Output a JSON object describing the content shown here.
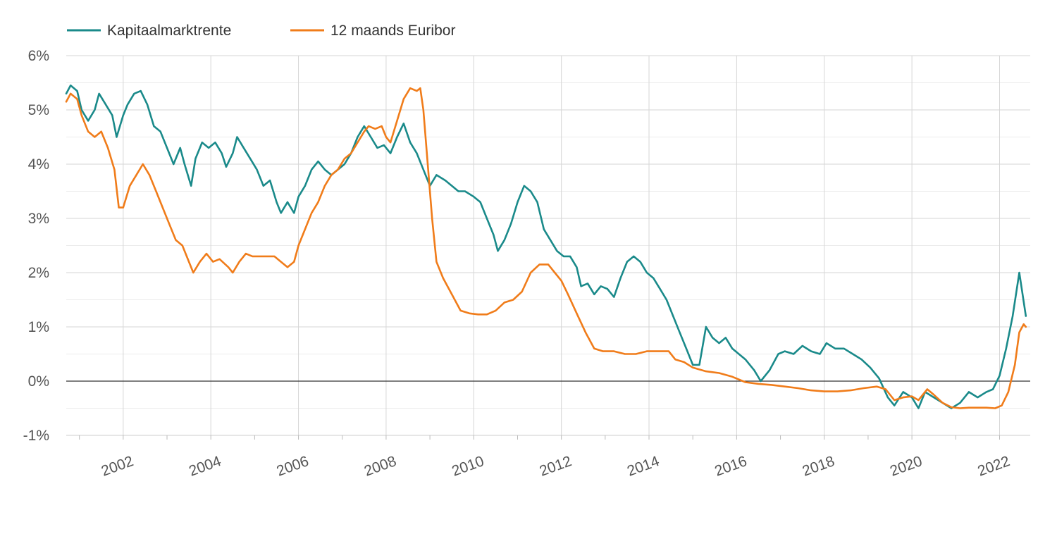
{
  "chart_data": {
    "type": "line",
    "title": "",
    "xlabel": "",
    "ylabel": "",
    "x_range": [
      2000.7,
      2022.7
    ],
    "ylim": [
      -1,
      6
    ],
    "grid": true,
    "legend_position": "top-left",
    "y_ticks": [
      -1,
      0,
      1,
      2,
      3,
      4,
      5,
      6
    ],
    "y_tick_labels": [
      "-1%",
      "0%",
      "1%",
      "2%",
      "3%",
      "4%",
      "5%",
      "6%"
    ],
    "x_ticks": [
      2002,
      2004,
      2006,
      2008,
      2010,
      2012,
      2014,
      2016,
      2018,
      2020,
      2022
    ],
    "x_tick_labels": [
      "2002",
      "2004",
      "2006",
      "2008",
      "2010",
      "2012",
      "2014",
      "2016",
      "2018",
      "2020",
      "2022"
    ],
    "series": [
      {
        "name": "Kapitaalmarktrente",
        "color": "#1a8a8a",
        "points": [
          [
            2000.7,
            5.3
          ],
          [
            2000.8,
            5.45
          ],
          [
            2000.95,
            5.35
          ],
          [
            2001.05,
            5.0
          ],
          [
            2001.2,
            4.8
          ],
          [
            2001.35,
            5.0
          ],
          [
            2001.45,
            5.3
          ],
          [
            2001.6,
            5.1
          ],
          [
            2001.75,
            4.9
          ],
          [
            2001.85,
            4.5
          ],
          [
            2002.0,
            4.9
          ],
          [
            2002.1,
            5.1
          ],
          [
            2002.25,
            5.3
          ],
          [
            2002.4,
            5.35
          ],
          [
            2002.55,
            5.1
          ],
          [
            2002.7,
            4.7
          ],
          [
            2002.85,
            4.6
          ],
          [
            2003.0,
            4.3
          ],
          [
            2003.15,
            4.0
          ],
          [
            2003.3,
            4.3
          ],
          [
            2003.4,
            4.0
          ],
          [
            2003.55,
            3.6
          ],
          [
            2003.65,
            4.1
          ],
          [
            2003.8,
            4.4
          ],
          [
            2003.95,
            4.3
          ],
          [
            2004.1,
            4.4
          ],
          [
            2004.25,
            4.2
          ],
          [
            2004.35,
            3.95
          ],
          [
            2004.5,
            4.2
          ],
          [
            2004.6,
            4.5
          ],
          [
            2004.75,
            4.3
          ],
          [
            2004.9,
            4.1
          ],
          [
            2005.05,
            3.9
          ],
          [
            2005.2,
            3.6
          ],
          [
            2005.35,
            3.7
          ],
          [
            2005.5,
            3.3
          ],
          [
            2005.6,
            3.1
          ],
          [
            2005.75,
            3.3
          ],
          [
            2005.9,
            3.1
          ],
          [
            2006.0,
            3.4
          ],
          [
            2006.15,
            3.6
          ],
          [
            2006.3,
            3.9
          ],
          [
            2006.45,
            4.05
          ],
          [
            2006.6,
            3.9
          ],
          [
            2006.75,
            3.8
          ],
          [
            2006.9,
            3.9
          ],
          [
            2007.05,
            4.0
          ],
          [
            2007.2,
            4.2
          ],
          [
            2007.35,
            4.5
          ],
          [
            2007.5,
            4.7
          ],
          [
            2007.65,
            4.5
          ],
          [
            2007.8,
            4.3
          ],
          [
            2007.95,
            4.35
          ],
          [
            2008.1,
            4.2
          ],
          [
            2008.25,
            4.5
          ],
          [
            2008.4,
            4.75
          ],
          [
            2008.55,
            4.4
          ],
          [
            2008.7,
            4.2
          ],
          [
            2008.85,
            3.9
          ],
          [
            2009.0,
            3.6
          ],
          [
            2009.15,
            3.8
          ],
          [
            2009.35,
            3.7
          ],
          [
            2009.5,
            3.6
          ],
          [
            2009.65,
            3.5
          ],
          [
            2009.8,
            3.5
          ],
          [
            2010.0,
            3.4
          ],
          [
            2010.15,
            3.3
          ],
          [
            2010.3,
            3.0
          ],
          [
            2010.45,
            2.7
          ],
          [
            2010.55,
            2.4
          ],
          [
            2010.7,
            2.6
          ],
          [
            2010.85,
            2.9
          ],
          [
            2011.0,
            3.3
          ],
          [
            2011.15,
            3.6
          ],
          [
            2011.3,
            3.5
          ],
          [
            2011.45,
            3.3
          ],
          [
            2011.6,
            2.8
          ],
          [
            2011.75,
            2.6
          ],
          [
            2011.9,
            2.4
          ],
          [
            2012.05,
            2.3
          ],
          [
            2012.2,
            2.3
          ],
          [
            2012.35,
            2.1
          ],
          [
            2012.45,
            1.75
          ],
          [
            2012.6,
            1.8
          ],
          [
            2012.75,
            1.6
          ],
          [
            2012.9,
            1.75
          ],
          [
            2013.05,
            1.7
          ],
          [
            2013.2,
            1.55
          ],
          [
            2013.35,
            1.9
          ],
          [
            2013.5,
            2.2
          ],
          [
            2013.65,
            2.3
          ],
          [
            2013.8,
            2.2
          ],
          [
            2013.95,
            2.0
          ],
          [
            2014.1,
            1.9
          ],
          [
            2014.25,
            1.7
          ],
          [
            2014.4,
            1.5
          ],
          [
            2014.55,
            1.2
          ],
          [
            2014.7,
            0.9
          ],
          [
            2014.85,
            0.6
          ],
          [
            2015.0,
            0.3
          ],
          [
            2015.15,
            0.3
          ],
          [
            2015.3,
            1.0
          ],
          [
            2015.45,
            0.8
          ],
          [
            2015.6,
            0.7
          ],
          [
            2015.75,
            0.8
          ],
          [
            2015.9,
            0.6
          ],
          [
            2016.05,
            0.5
          ],
          [
            2016.2,
            0.4
          ],
          [
            2016.4,
            0.2
          ],
          [
            2016.55,
            0.0
          ],
          [
            2016.75,
            0.2
          ],
          [
            2016.95,
            0.5
          ],
          [
            2017.1,
            0.55
          ],
          [
            2017.3,
            0.5
          ],
          [
            2017.5,
            0.65
          ],
          [
            2017.7,
            0.55
          ],
          [
            2017.9,
            0.5
          ],
          [
            2018.05,
            0.7
          ],
          [
            2018.25,
            0.6
          ],
          [
            2018.45,
            0.6
          ],
          [
            2018.65,
            0.5
          ],
          [
            2018.85,
            0.4
          ],
          [
            2019.05,
            0.25
          ],
          [
            2019.25,
            0.05
          ],
          [
            2019.45,
            -0.3
          ],
          [
            2019.6,
            -0.45
          ],
          [
            2019.8,
            -0.2
          ],
          [
            2020.0,
            -0.3
          ],
          [
            2020.15,
            -0.5
          ],
          [
            2020.3,
            -0.2
          ],
          [
            2020.5,
            -0.3
          ],
          [
            2020.7,
            -0.4
          ],
          [
            2020.9,
            -0.5
          ],
          [
            2021.1,
            -0.4
          ],
          [
            2021.3,
            -0.2
          ],
          [
            2021.5,
            -0.3
          ],
          [
            2021.7,
            -0.2
          ],
          [
            2021.85,
            -0.15
          ],
          [
            2022.0,
            0.1
          ],
          [
            2022.15,
            0.6
          ],
          [
            2022.3,
            1.2
          ],
          [
            2022.45,
            2.0
          ],
          [
            2022.6,
            1.2
          ]
        ]
      },
      {
        "name": "12 maands Euribor",
        "color": "#f07c1a",
        "points": [
          [
            2000.7,
            5.15
          ],
          [
            2000.8,
            5.3
          ],
          [
            2000.95,
            5.2
          ],
          [
            2001.05,
            4.9
          ],
          [
            2001.2,
            4.6
          ],
          [
            2001.35,
            4.5
          ],
          [
            2001.5,
            4.6
          ],
          [
            2001.65,
            4.3
          ],
          [
            2001.8,
            3.9
          ],
          [
            2001.9,
            3.2
          ],
          [
            2002.0,
            3.2
          ],
          [
            2002.15,
            3.6
          ],
          [
            2002.3,
            3.8
          ],
          [
            2002.45,
            4.0
          ],
          [
            2002.6,
            3.8
          ],
          [
            2002.75,
            3.5
          ],
          [
            2002.9,
            3.2
          ],
          [
            2003.05,
            2.9
          ],
          [
            2003.2,
            2.6
          ],
          [
            2003.35,
            2.5
          ],
          [
            2003.5,
            2.2
          ],
          [
            2003.6,
            2.0
          ],
          [
            2003.75,
            2.2
          ],
          [
            2003.9,
            2.35
          ],
          [
            2004.05,
            2.2
          ],
          [
            2004.2,
            2.25
          ],
          [
            2004.4,
            2.1
          ],
          [
            2004.5,
            2.0
          ],
          [
            2004.65,
            2.2
          ],
          [
            2004.8,
            2.35
          ],
          [
            2004.95,
            2.3
          ],
          [
            2005.2,
            2.3
          ],
          [
            2005.45,
            2.3
          ],
          [
            2005.6,
            2.2
          ],
          [
            2005.75,
            2.1
          ],
          [
            2005.9,
            2.2
          ],
          [
            2006.0,
            2.5
          ],
          [
            2006.15,
            2.8
          ],
          [
            2006.3,
            3.1
          ],
          [
            2006.45,
            3.3
          ],
          [
            2006.6,
            3.6
          ],
          [
            2006.75,
            3.8
          ],
          [
            2006.9,
            3.9
          ],
          [
            2007.05,
            4.1
          ],
          [
            2007.2,
            4.2
          ],
          [
            2007.35,
            4.4
          ],
          [
            2007.5,
            4.6
          ],
          [
            2007.6,
            4.7
          ],
          [
            2007.75,
            4.65
          ],
          [
            2007.9,
            4.7
          ],
          [
            2008.0,
            4.5
          ],
          [
            2008.1,
            4.4
          ],
          [
            2008.25,
            4.8
          ],
          [
            2008.4,
            5.2
          ],
          [
            2008.55,
            5.4
          ],
          [
            2008.7,
            5.35
          ],
          [
            2008.78,
            5.4
          ],
          [
            2008.85,
            5.0
          ],
          [
            2008.95,
            4.0
          ],
          [
            2009.05,
            3.0
          ],
          [
            2009.15,
            2.2
          ],
          [
            2009.3,
            1.9
          ],
          [
            2009.5,
            1.6
          ],
          [
            2009.7,
            1.3
          ],
          [
            2009.9,
            1.25
          ],
          [
            2010.1,
            1.23
          ],
          [
            2010.3,
            1.23
          ],
          [
            2010.5,
            1.3
          ],
          [
            2010.7,
            1.45
          ],
          [
            2010.9,
            1.5
          ],
          [
            2011.1,
            1.65
          ],
          [
            2011.3,
            2.0
          ],
          [
            2011.5,
            2.15
          ],
          [
            2011.7,
            2.15
          ],
          [
            2011.85,
            2.0
          ],
          [
            2012.0,
            1.85
          ],
          [
            2012.15,
            1.6
          ],
          [
            2012.35,
            1.25
          ],
          [
            2012.55,
            0.9
          ],
          [
            2012.75,
            0.6
          ],
          [
            2012.95,
            0.55
          ],
          [
            2013.2,
            0.55
          ],
          [
            2013.45,
            0.5
          ],
          [
            2013.7,
            0.5
          ],
          [
            2013.95,
            0.55
          ],
          [
            2014.2,
            0.55
          ],
          [
            2014.45,
            0.55
          ],
          [
            2014.6,
            0.4
          ],
          [
            2014.8,
            0.35
          ],
          [
            2015.0,
            0.25
          ],
          [
            2015.3,
            0.18
          ],
          [
            2015.6,
            0.15
          ],
          [
            2015.9,
            0.08
          ],
          [
            2016.2,
            -0.02
          ],
          [
            2016.5,
            -0.05
          ],
          [
            2016.8,
            -0.07
          ],
          [
            2017.1,
            -0.1
          ],
          [
            2017.4,
            -0.13
          ],
          [
            2017.7,
            -0.17
          ],
          [
            2018.0,
            -0.19
          ],
          [
            2018.3,
            -0.19
          ],
          [
            2018.6,
            -0.17
          ],
          [
            2018.9,
            -0.13
          ],
          [
            2019.2,
            -0.1
          ],
          [
            2019.4,
            -0.15
          ],
          [
            2019.6,
            -0.35
          ],
          [
            2019.8,
            -0.3
          ],
          [
            2020.0,
            -0.28
          ],
          [
            2020.15,
            -0.35
          ],
          [
            2020.35,
            -0.15
          ],
          [
            2020.5,
            -0.25
          ],
          [
            2020.7,
            -0.4
          ],
          [
            2020.9,
            -0.48
          ],
          [
            2021.1,
            -0.5
          ],
          [
            2021.3,
            -0.49
          ],
          [
            2021.5,
            -0.49
          ],
          [
            2021.7,
            -0.49
          ],
          [
            2021.9,
            -0.5
          ],
          [
            2022.05,
            -0.45
          ],
          [
            2022.2,
            -0.2
          ],
          [
            2022.35,
            0.3
          ],
          [
            2022.45,
            0.9
          ],
          [
            2022.55,
            1.05
          ],
          [
            2022.6,
            1.0
          ]
        ]
      }
    ]
  }
}
